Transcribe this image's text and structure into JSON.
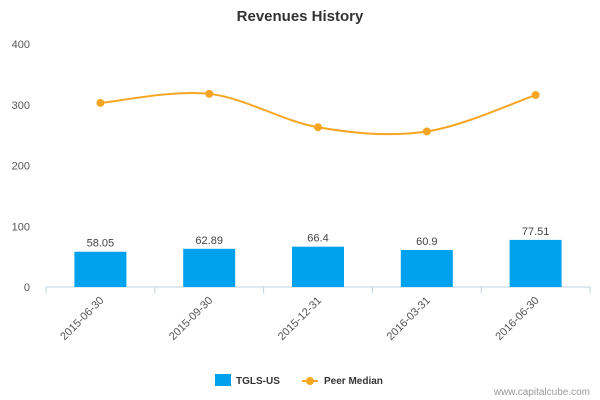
{
  "chart_data": {
    "type": "bar",
    "title": "Revenues History",
    "xlabel": "",
    "ylabel": "",
    "ylim": [
      0,
      400
    ],
    "yticks": [
      0,
      100,
      200,
      300,
      400
    ],
    "categories": [
      "2015-06-30",
      "2015-09-30",
      "2015-12-31",
      "2016-03-31",
      "2016-06-30"
    ],
    "series": [
      {
        "name": "TGLS-US",
        "type": "bar",
        "color": "#00a2ed",
        "values": [
          58.05,
          62.89,
          66.4,
          60.9,
          77.51
        ],
        "labels": [
          "58.05",
          "62.89",
          "66.4",
          "60.9",
          "77.51"
        ]
      },
      {
        "name": "Peer Median",
        "type": "line",
        "color": "#f6a623",
        "values": [
          303,
          318,
          263,
          256,
          316
        ]
      }
    ],
    "legend_position": "bottom",
    "grid": false
  },
  "credit": "www.capitalcube.com"
}
